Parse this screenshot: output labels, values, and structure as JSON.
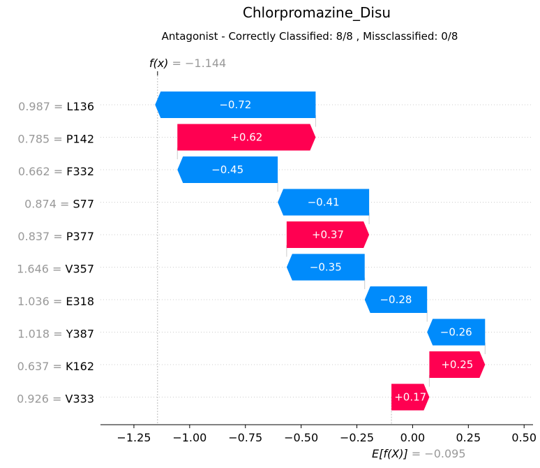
{
  "chart_data": {
    "type": "waterfall",
    "title": "Chlorpromazine_Disu",
    "subtitle": "Antagonist - Correctly Classified: 8/8 , Missclassified: 0/8",
    "fx_label": "f(x)",
    "fx_value_text": " = −1.144",
    "fx_value": -1.144,
    "efx_label": "E[f(X)]",
    "efx_value_text": " = −0.095",
    "efx_value": -0.095,
    "xlim": [
      -1.4,
      0.54
    ],
    "x_ticks": [
      -1.25,
      -1.0,
      -0.75,
      -0.5,
      -0.25,
      0.0,
      0.25,
      0.5
    ],
    "x_tick_labels": [
      "−1.25",
      "−1.00",
      "−0.75",
      "−0.50",
      "−0.25",
      "0.00",
      "0.25",
      "0.50"
    ],
    "colors": {
      "positive": "#ff0051",
      "negative": "#008bfb",
      "muted": "#999999"
    },
    "features": [
      {
        "value": "0.987",
        "name": "L136",
        "contribution": -0.72,
        "label": "−0.72"
      },
      {
        "value": "0.785",
        "name": "P142",
        "contribution": 0.62,
        "label": "+0.62"
      },
      {
        "value": "0.662",
        "name": "F332",
        "contribution": -0.45,
        "label": "−0.45"
      },
      {
        "value": "0.874",
        "name": "S77",
        "contribution": -0.41,
        "label": "−0.41"
      },
      {
        "value": "0.837",
        "name": "P377",
        "contribution": 0.37,
        "label": "+0.37"
      },
      {
        "value": "1.646",
        "name": "V357",
        "contribution": -0.35,
        "label": "−0.35"
      },
      {
        "value": "1.036",
        "name": "E318",
        "contribution": -0.28,
        "label": "−0.28"
      },
      {
        "value": "1.018",
        "name": "Y387",
        "contribution": -0.26,
        "label": "−0.26"
      },
      {
        "value": "0.637",
        "name": "K162",
        "contribution": 0.25,
        "label": "+0.25"
      },
      {
        "value": "0.926",
        "name": "V333",
        "contribution": 0.17,
        "label": "+0.17"
      }
    ]
  }
}
